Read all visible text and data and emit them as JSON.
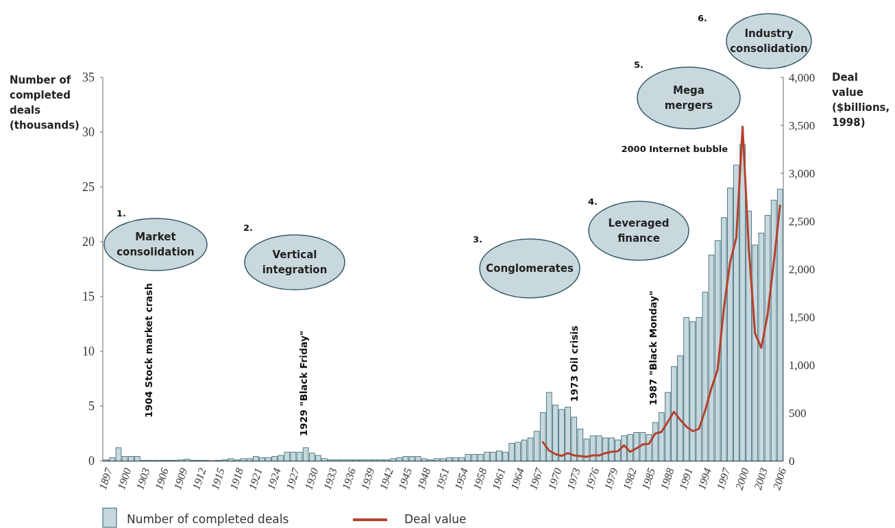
{
  "chart_data": {
    "type": "bar",
    "ylabel": "Number of completed deals (thousands)",
    "y2label": "Deal value ($billions, 1998)",
    "categories": [
      "1897",
      null,
      null,
      "1900",
      null,
      null,
      "1903",
      null,
      null,
      "1906",
      null,
      null,
      "1909",
      null,
      null,
      "1912",
      null,
      null,
      "1915",
      null,
      null,
      "1918",
      null,
      null,
      "1921",
      null,
      null,
      "1924",
      null,
      null,
      "1927",
      null,
      null,
      "1930",
      null,
      null,
      "1933",
      null,
      null,
      "1936",
      null,
      null,
      "1939",
      null,
      null,
      "1942",
      null,
      null,
      "1945",
      null,
      null,
      "1948",
      null,
      null,
      "1951",
      null,
      null,
      "1954",
      null,
      null,
      "1958",
      null,
      null,
      "1961",
      null,
      null,
      "1964",
      null,
      null,
      "1967",
      null,
      null,
      "1970",
      null,
      null,
      "1973",
      null,
      null,
      "1976",
      null,
      null,
      "1979",
      null,
      null,
      "1982",
      null,
      null,
      "1985",
      null,
      null,
      "1988",
      null,
      null,
      "1991",
      null,
      null,
      "1994",
      null,
      null,
      "1997",
      null,
      null,
      "2000",
      null,
      null,
      "2003",
      null,
      null,
      "2006"
    ],
    "series": [
      {
        "name": "Number of completed deals",
        "color": "#c6d8de",
        "values": [
          0.1,
          0.3,
          1.2,
          0.4,
          0.4,
          0.4,
          0.05,
          0.05,
          0.05,
          0.05,
          0.05,
          0.05,
          0.1,
          0.15,
          0.05,
          0.05,
          0.05,
          0,
          0.05,
          0.1,
          0.2,
          0.1,
          0.2,
          0.2,
          0.4,
          0.3,
          0.3,
          0.4,
          0.5,
          0.8,
          0.8,
          0.8,
          1.2,
          0.7,
          0.5,
          0.2,
          0.1,
          0.1,
          0.1,
          0.1,
          0.1,
          0.1,
          0.1,
          0.1,
          0.1,
          0.1,
          0.2,
          0.3,
          0.4,
          0.4,
          0.4,
          0.2,
          0.1,
          0.2,
          0.2,
          0.3,
          0.3,
          0.3,
          0.6,
          0.6,
          0.6,
          0.8,
          0.8,
          0.9,
          0.8,
          1.6,
          1.7,
          1.9,
          2.1,
          2.7,
          4.4,
          6.25,
          5.1,
          4.7,
          4.9,
          4.0,
          2.9,
          2.0,
          2.3,
          2.3,
          2.1,
          2.1,
          1.9,
          2.3,
          2.4,
          2.6,
          2.6,
          2.4,
          3.5,
          4.4,
          6.25,
          8.6,
          9.6,
          13.1,
          12.7,
          13.1,
          15.4,
          18.8,
          20.1,
          22.2,
          24.9,
          27.0,
          28.9,
          22.8,
          19.7,
          20.8,
          22.4,
          23.8,
          24.8
        ]
      },
      {
        "name": "Deal value",
        "type": "line",
        "axis": "y2",
        "color": "#b5412b",
        "values": [
          null,
          null,
          null,
          null,
          null,
          null,
          null,
          null,
          null,
          null,
          null,
          null,
          null,
          null,
          null,
          null,
          null,
          null,
          null,
          null,
          null,
          null,
          null,
          null,
          null,
          null,
          null,
          null,
          null,
          null,
          null,
          null,
          null,
          null,
          null,
          null,
          null,
          null,
          null,
          null,
          null,
          null,
          null,
          null,
          null,
          null,
          null,
          null,
          null,
          null,
          null,
          null,
          null,
          null,
          null,
          null,
          null,
          null,
          null,
          null,
          null,
          null,
          null,
          null,
          null,
          null,
          null,
          null,
          null,
          null,
          195,
          107,
          71,
          52,
          81,
          57,
          50,
          43,
          57,
          57,
          81,
          95,
          100,
          162,
          95,
          131,
          171,
          179,
          286,
          302,
          405,
          512,
          429,
          357,
          310,
          333,
          524,
          757,
          950,
          1593,
          2071,
          2329,
          3486,
          2214,
          1329,
          1179,
          1521,
          2071,
          2664
        ]
      }
    ],
    "ylim": [
      0,
      35
    ],
    "yticks": [
      0,
      5,
      10,
      15,
      20,
      25,
      30,
      35
    ],
    "y2lim": [
      0,
      4000
    ],
    "y2ticks": [
      0,
      500,
      {
        "value": 1000,
        "label": "1,000"
      },
      {
        "value": 1500,
        "label": "1,500"
      },
      {
        "value": 2000,
        "label": "2,000"
      },
      {
        "value": 2500,
        "label": "2,500"
      },
      {
        "value": 3000,
        "label": "3,000"
      },
      {
        "value": 3500,
        "label": "3,500"
      },
      {
        "value": 4000,
        "label": "4,000"
      }
    ],
    "legend": "bottom left",
    "annotations": [
      "1.",
      "Market consolidation",
      "2.",
      "Vertical integration",
      "3.",
      "Conglomerates",
      "4.",
      "Leveraged finance",
      "5.",
      "Mega mergers",
      "6.",
      "Industry consolidation",
      "1904 Stock market crash",
      "1929 \"Black Friday\"",
      "1973 Oil crisis",
      "1987 \"Black Monday\"",
      "2000 Internet bubble"
    ]
  }
}
